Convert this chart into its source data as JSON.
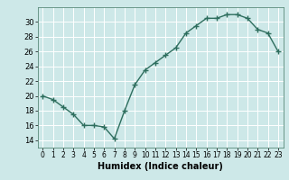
{
  "x": [
    0,
    1,
    2,
    3,
    4,
    5,
    6,
    7,
    8,
    9,
    10,
    11,
    12,
    13,
    14,
    15,
    16,
    17,
    18,
    19,
    20,
    21,
    22,
    23
  ],
  "y": [
    20.0,
    19.5,
    18.5,
    17.5,
    16.0,
    16.0,
    15.8,
    14.2,
    18.0,
    21.5,
    23.5,
    24.5,
    25.5,
    26.5,
    28.5,
    29.5,
    30.5,
    30.5,
    31.0,
    31.0,
    30.5,
    29.0,
    28.5,
    26.0
  ],
  "line_color": "#2e6e5e",
  "marker": "+",
  "markersize": 4,
  "linewidth": 1.0,
  "markeredgewidth": 1.0,
  "xlabel": "Humidex (Indice chaleur)",
  "xlim": [
    -0.5,
    23.5
  ],
  "ylim": [
    13,
    32
  ],
  "yticks": [
    14,
    16,
    18,
    20,
    22,
    24,
    26,
    28,
    30
  ],
  "xticks": [
    0,
    1,
    2,
    3,
    4,
    5,
    6,
    7,
    8,
    9,
    10,
    11,
    12,
    13,
    14,
    15,
    16,
    17,
    18,
    19,
    20,
    21,
    22,
    23
  ],
  "bg_color": "#cde8e8",
  "grid_color": "#ffffff",
  "spine_color": "#5a8a7a"
}
